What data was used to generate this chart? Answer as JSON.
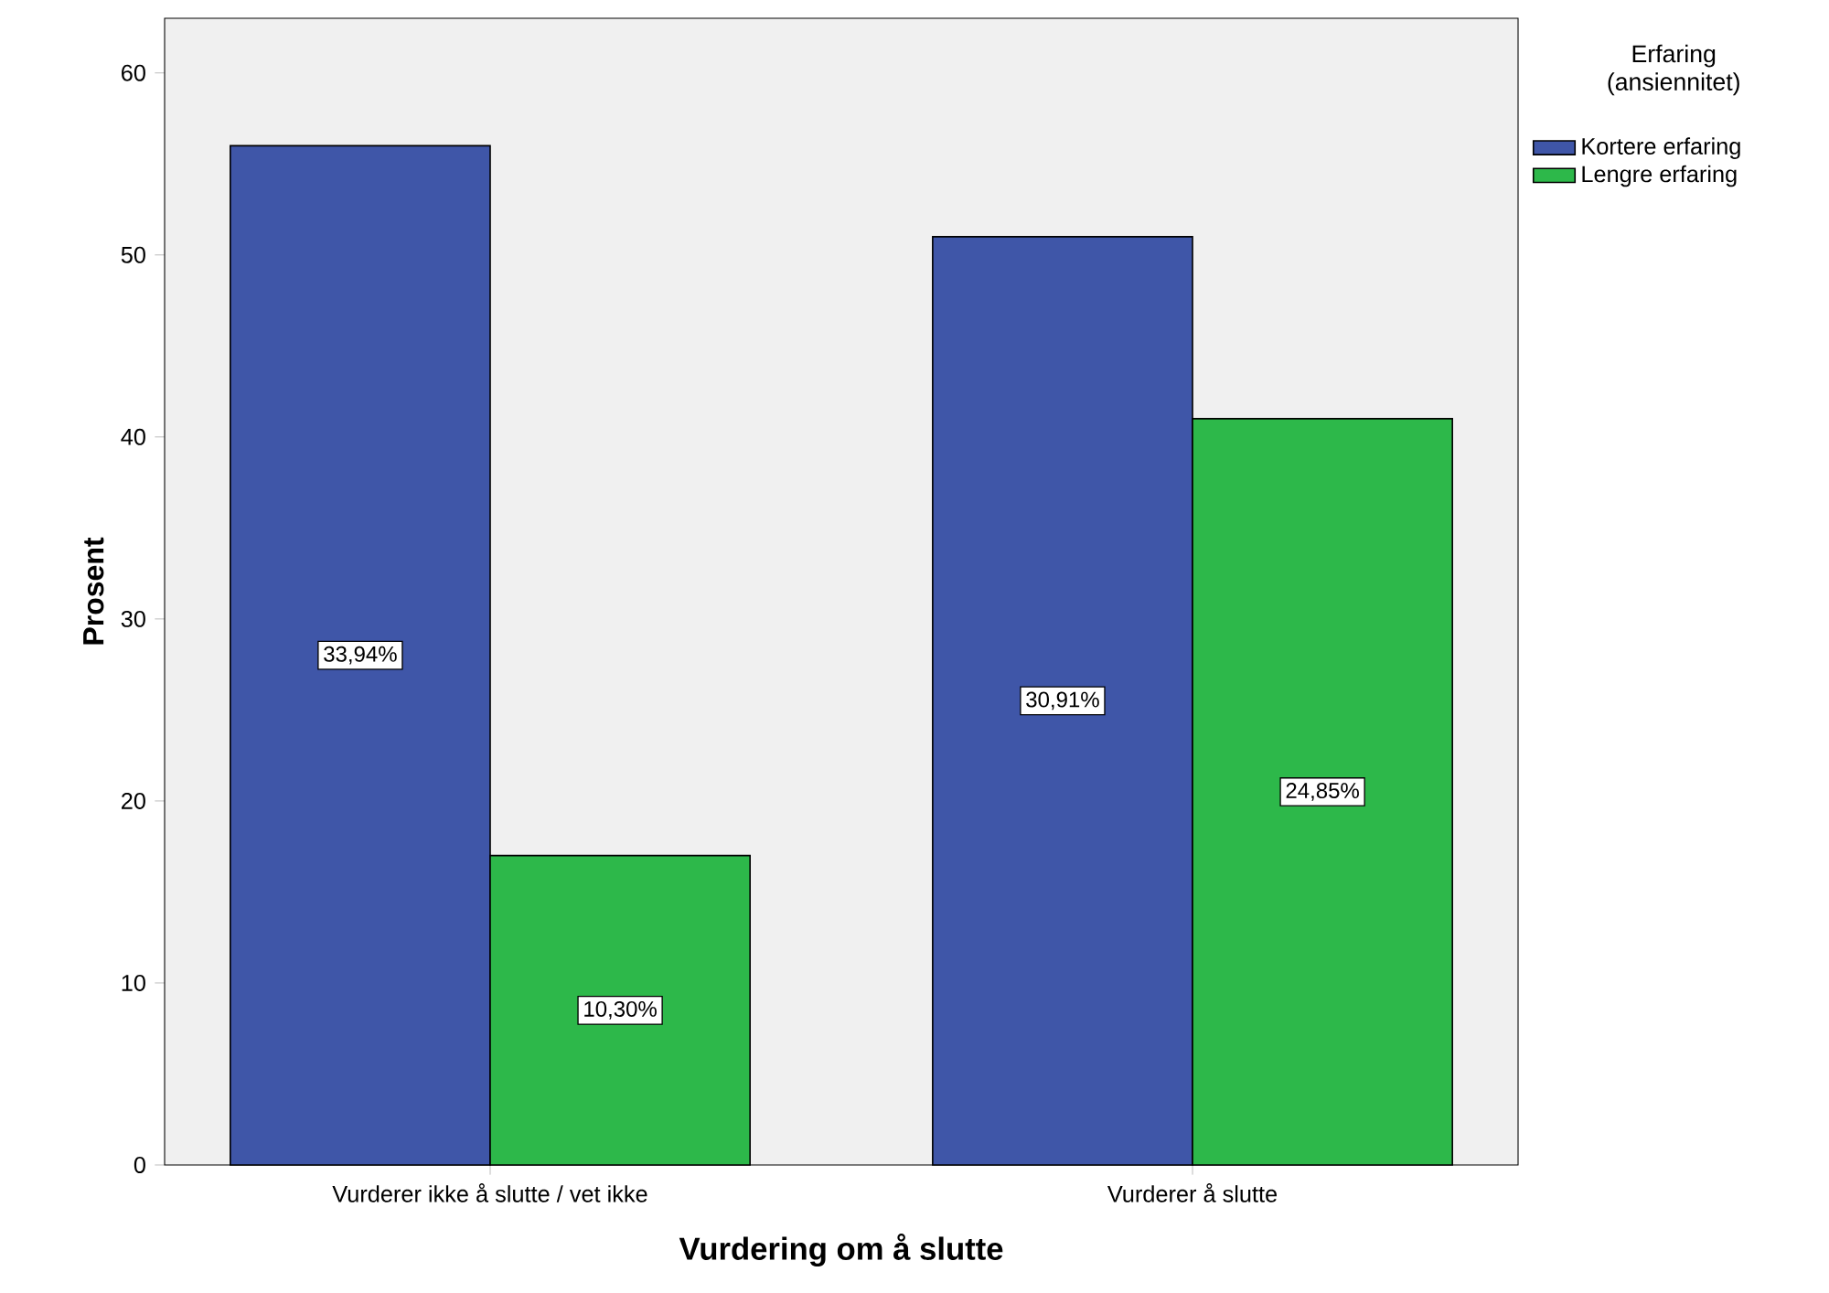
{
  "chart_data": {
    "type": "bar",
    "xlabel": "Vurdering om å slutte",
    "ylabel": "Prosent",
    "legend_title": "Erfaring (ansiennitet)",
    "categories": [
      "Vurderer ikke å slutte / vet ikke",
      "Vurderer å slutte"
    ],
    "series": [
      {
        "name": "Kortere erfaring",
        "color": "#3f56a8",
        "values": [
          56,
          51
        ]
      },
      {
        "name": "Lengre erfaring",
        "color": "#2db84a",
        "values": [
          17,
          41
        ]
      }
    ],
    "annotations": [
      "33,94%",
      "10,30%",
      "30,91%",
      "24,85%"
    ],
    "ylim": [
      0,
      63
    ],
    "yticks": [
      0,
      10,
      20,
      30,
      40,
      50,
      60
    ],
    "grid": false,
    "legend": "right"
  }
}
